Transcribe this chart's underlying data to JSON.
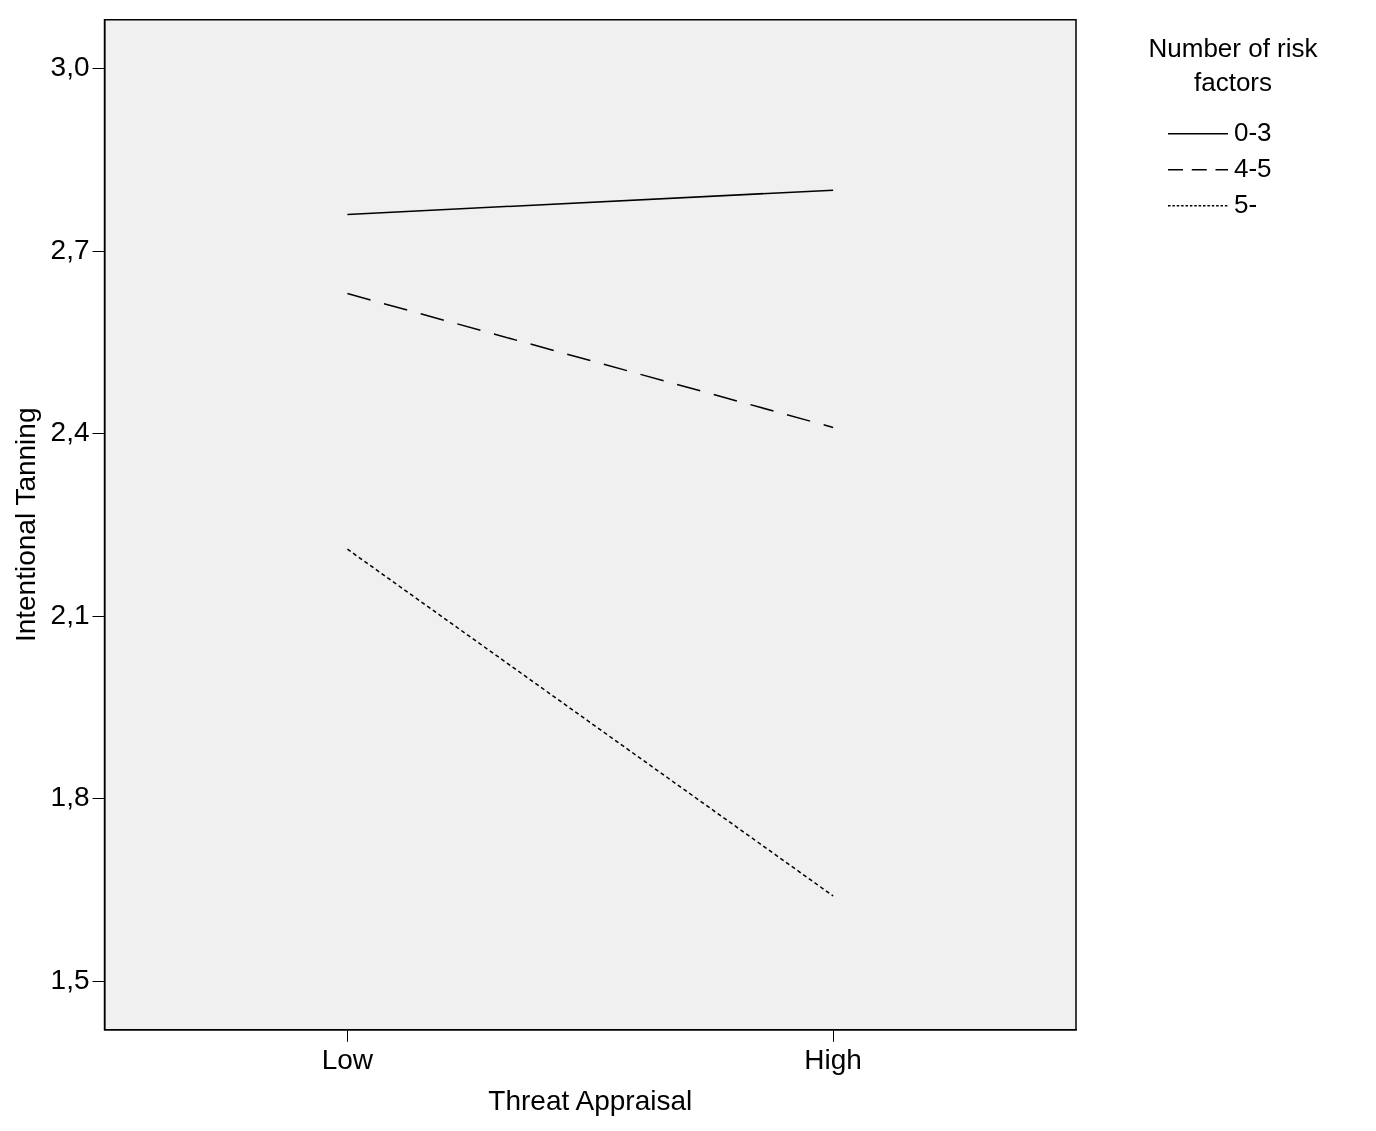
{
  "chart_data": {
    "type": "line",
    "xlabel": "Threat Appraisal",
    "ylabel": "Intentional Tanning",
    "legend_title": "Number of risk factors",
    "categories": [
      "Low",
      "High"
    ],
    "series": [
      {
        "name": "0-3",
        "color": "#000000",
        "values": [
          2.76,
          2.8
        ],
        "line_style": "solid"
      },
      {
        "name": "4-5",
        "color": "#000000",
        "values": [
          2.63,
          2.41
        ],
        "line_style": "dashed"
      },
      {
        "name": "5-",
        "color": "#000000",
        "values": [
          2.21,
          1.64
        ],
        "line_style": "dotted"
      }
    ],
    "ylim": [
      1.42,
      3.08
    ],
    "yticks": [
      {
        "value": 1.5,
        "label": "1,5"
      },
      {
        "value": 1.8,
        "label": "1,8"
      },
      {
        "value": 2.1,
        "label": "2,1"
      },
      {
        "value": 2.4,
        "label": "2,4"
      },
      {
        "value": 2.7,
        "label": "2,7"
      },
      {
        "value": 3.0,
        "label": "3,0"
      }
    ],
    "grid": false,
    "legend": "top right",
    "marker": "none"
  }
}
